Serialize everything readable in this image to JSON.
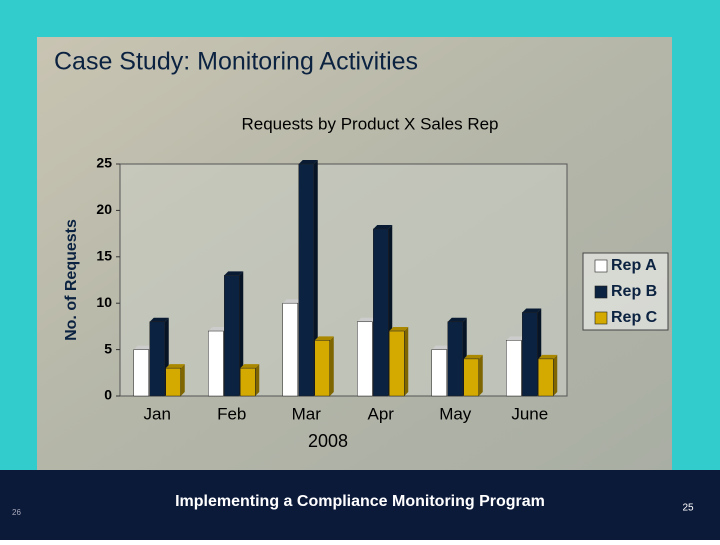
{
  "slide_title": "Case Study:  Monitoring Activities",
  "chart_data": {
    "type": "bar",
    "title": "Requests by Product X Sales Rep",
    "y_label": "No. of Requests",
    "x_label": "2008",
    "categories": [
      "Jan",
      "Feb",
      "Mar",
      "Apr",
      "May",
      "June"
    ],
    "series": [
      {
        "name": "Rep A",
        "color": "#ffffff",
        "values": [
          5,
          7,
          10,
          8,
          5,
          6
        ]
      },
      {
        "name": "Rep B",
        "color": "#0b2240",
        "values": [
          8,
          13,
          25,
          18,
          8,
          9
        ]
      },
      {
        "name": "Rep C",
        "color": "#d4aa00",
        "values": [
          3,
          3,
          6,
          7,
          4,
          4
        ]
      }
    ],
    "ylim": [
      0,
      25
    ],
    "yticks": [
      0,
      5,
      10,
      15,
      20,
      25
    ],
    "legend": "right"
  },
  "footer": {
    "text": "Implementing a Compliance Monitoring Program",
    "left_number": "26",
    "page_number": "25"
  }
}
